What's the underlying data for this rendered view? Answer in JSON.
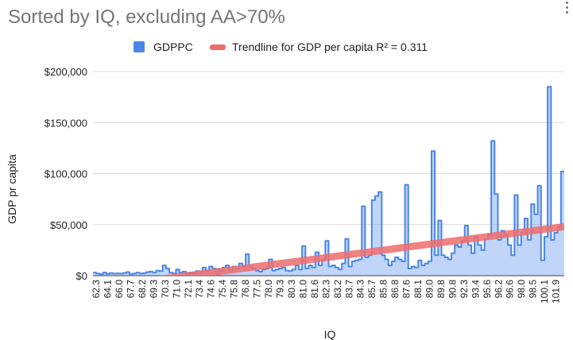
{
  "chart_data": {
    "type": "area",
    "title": "Sorted by IQ, excluding AA>70%",
    "xlabel": "IQ",
    "ylabel": "GDP pr capita",
    "ylim": [
      0,
      200000
    ],
    "yticks": [
      "$0",
      "$50,000",
      "$100,000",
      "$150,000",
      "$200,000"
    ],
    "grid": true,
    "legend_position": "top",
    "x_tick_labels": [
      "62.3",
      "64.1",
      "66.0",
      "67.7",
      "68.2",
      "69.3",
      "70.3",
      "71.0",
      "72.1",
      "73.4",
      "74.6",
      "75.4",
      "75.8",
      "76.8",
      "77.5",
      "78.0",
      "79.3",
      "80.3",
      "81.0",
      "81.6",
      "82.3",
      "83.2",
      "83.7",
      "84.3",
      "85.7",
      "85.8",
      "86.8",
      "87.6",
      "88.1",
      "89.0",
      "89.8",
      "90.8",
      "92.3",
      "93.4",
      "95.6",
      "96.2",
      "96.6",
      "98.0",
      "98.5",
      "100.1",
      "101.9"
    ],
    "series": [
      {
        "name": "GDPPC",
        "color": "#4a86e8",
        "values": [
          3000,
          2000,
          1500,
          3000,
          1800,
          2500,
          2000,
          2200,
          2000,
          2500,
          3500,
          1500,
          2000,
          3000,
          2000,
          2500,
          3500,
          4000,
          3000,
          5000,
          4500,
          10000,
          7000,
          3000,
          2000,
          6000,
          3000,
          4000,
          2000,
          3000,
          2500,
          4500,
          3500,
          8000,
          5000,
          9000,
          7000,
          6000,
          4500,
          8000,
          10000,
          5000,
          9000,
          7000,
          12000,
          9000,
          21000,
          9000,
          7000,
          5000,
          4000,
          6000,
          7000,
          16000,
          5000,
          6000,
          7000,
          8000,
          5000,
          4500,
          6000,
          10000,
          6000,
          29000,
          7000,
          10000,
          8000,
          23000,
          10000,
          16000,
          34000,
          9000,
          10000,
          8000,
          6000,
          12000,
          36000,
          9000,
          14000,
          15000,
          16000,
          68000,
          18000,
          20000,
          74000,
          78000,
          82000,
          20000,
          16000,
          10000,
          14000,
          18000,
          16000,
          14000,
          89000,
          7000,
          9000,
          8000,
          15000,
          10000,
          12000,
          14000,
          122000,
          20000,
          54000,
          20000,
          18000,
          16000,
          22000,
          30000,
          28000,
          34000,
          49000,
          30000,
          22000,
          38000,
          30000,
          25000,
          36000,
          40000,
          132000,
          80000,
          35000,
          44000,
          40000,
          30000,
          20000,
          79000,
          30000,
          42000,
          56000,
          35000,
          70000,
          60000,
          88000,
          15000,
          38000,
          185000,
          35000,
          42000,
          48000,
          102000
        ]
      },
      {
        "name": "Trendline for GDP per capita R² = 0.311",
        "color": "#ef6c6c",
        "type": "line",
        "values": [
          -12000,
          48000
        ]
      }
    ]
  }
}
